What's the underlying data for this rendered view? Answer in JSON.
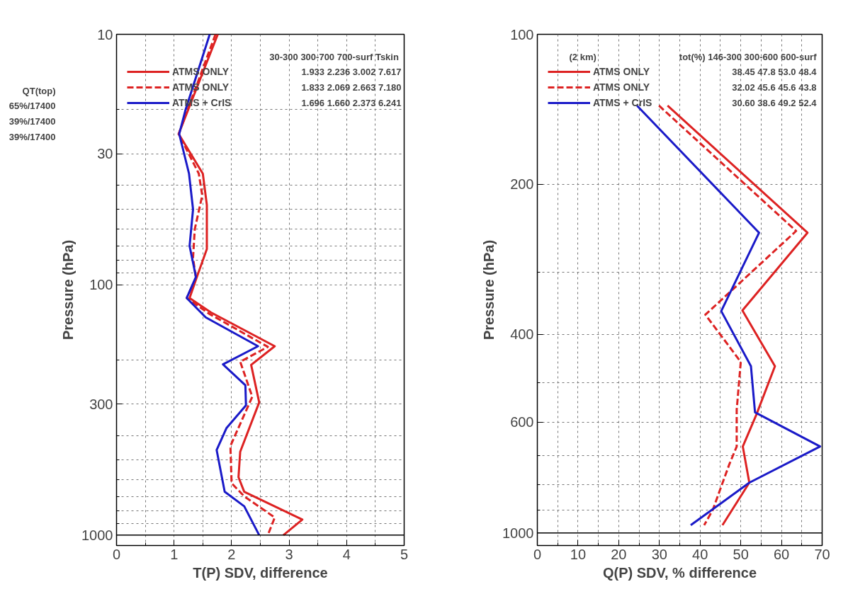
{
  "chart_data": [
    {
      "type": "line",
      "xlabel": "T(P) SDV, difference",
      "ylabel": "Pressure (hPa)",
      "log": "y",
      "xlim": [
        0,
        5
      ],
      "xticks": [
        0,
        1,
        2,
        3,
        4,
        5
      ],
      "ylim": [
        1100,
        10
      ],
      "yticks": [
        10,
        30,
        100,
        300,
        1000
      ],
      "grid": true,
      "legend": "top left",
      "line_style": "solid",
      "annotations": [
        "QT(top)",
        "30-300 300-700 700-surf  Tskin",
        "1.933 2.236 3.002 7.617",
        "1.833 2.069 2.663 7.180",
        "1.696 1.660 2.373 6.241",
        "65%/17400",
        "39%/17400",
        "39%/17400"
      ],
      "ref_lines": [
        {
          "axis": "y",
          "value": 1000,
          "color": "#000000"
        }
      ],
      "series": [
        {
          "name": "ATMS ONLY",
          "color": "#dd2222",
          "x": [
            1.76,
            1.08,
            1.5,
            1.57,
            1.57,
            1.39,
            1.27,
            1.64,
            2.75,
            2.34,
            2.48,
            2.15,
            2.12,
            2.22,
            3.23,
            2.9
          ],
          "values": [
            10,
            25,
            36,
            48,
            72,
            94,
            113,
            129,
            176,
            209,
            295,
            464,
            587,
            671,
            867,
            1000
          ]
        },
        {
          "name": "ATMS ONLY",
          "color": "#dd2222",
          "line_style": "dashed",
          "x": [
            1.72,
            1.08,
            1.43,
            1.49,
            1.36,
            1.33,
            1.38,
            1.22,
            1.62,
            2.63,
            2.15,
            2.36,
            1.98,
            2.0,
            2.22,
            2.75,
            2.63
          ],
          "values": [
            10,
            25,
            36,
            44,
            60,
            78,
            94,
            113,
            131,
            177,
            203,
            280,
            440,
            620,
            700,
            850,
            1000
          ]
        },
        {
          "name": "ATMS + CrIS",
          "color": "#1a1ac8",
          "x": [
            1.62,
            1.2,
            1.09,
            1.26,
            1.33,
            1.27,
            1.38,
            1.22,
            1.55,
            2.46,
            1.85,
            2.24,
            2.25,
            1.91,
            1.74,
            1.88,
            2.22,
            2.48
          ],
          "values": [
            10,
            20,
            25,
            36,
            50,
            70,
            93,
            113,
            135,
            176,
            208,
            252,
            303,
            374,
            457,
            671,
            767,
            1000
          ]
        }
      ]
    },
    {
      "type": "line",
      "xlabel": "Q(P) SDV, % difference",
      "ylabel": "Pressure (hPa)",
      "log": "y",
      "xlim": [
        0,
        70
      ],
      "xticks": [
        0,
        10,
        20,
        30,
        40,
        50,
        60,
        70
      ],
      "ylim": [
        1060,
        100
      ],
      "yticks": [
        100,
        200,
        400,
        600,
        1000
      ],
      "grid": true,
      "legend": "top left",
      "line_style": "solid",
      "annotations": [
        "(2 km)",
        "tot(%) 146-300 300-600 600-surf",
        "38.45 47.8 53.0 48.4",
        "32.02 45.6 45.6 43.8",
        "30.60 38.6 49.2 52.4"
      ],
      "ref_lines": [
        {
          "axis": "y",
          "value": 1000,
          "color": "#000000"
        }
      ],
      "series": [
        {
          "name": "ATMS ONLY",
          "color": "#dd2222",
          "x": [
            32.0,
            66.4,
            50.4,
            58.4,
            53.8,
            50.5,
            52.1,
            45.5
          ],
          "values": [
            139,
            250,
            358,
            463,
            580,
            671,
            793,
            965
          ]
        },
        {
          "name": "ATMS ONLY",
          "color": "#dd2222",
          "line_style": "dashed",
          "x": [
            29.9,
            63.6,
            41.3,
            50.0,
            49.0,
            49.0,
            47.2,
            43.1,
            41.0
          ],
          "values": [
            139,
            248,
            365,
            454,
            566,
            671,
            728,
            900,
            965
          ]
        },
        {
          "name": "ATMS + CrIS",
          "color": "#1a1ac8",
          "x": [
            24.5,
            54.5,
            45.2,
            52.5,
            53.5,
            69.5,
            52.1,
            37.7
          ],
          "values": [
            139,
            250,
            359,
            463,
            573,
            671,
            793,
            965
          ]
        }
      ]
    }
  ]
}
